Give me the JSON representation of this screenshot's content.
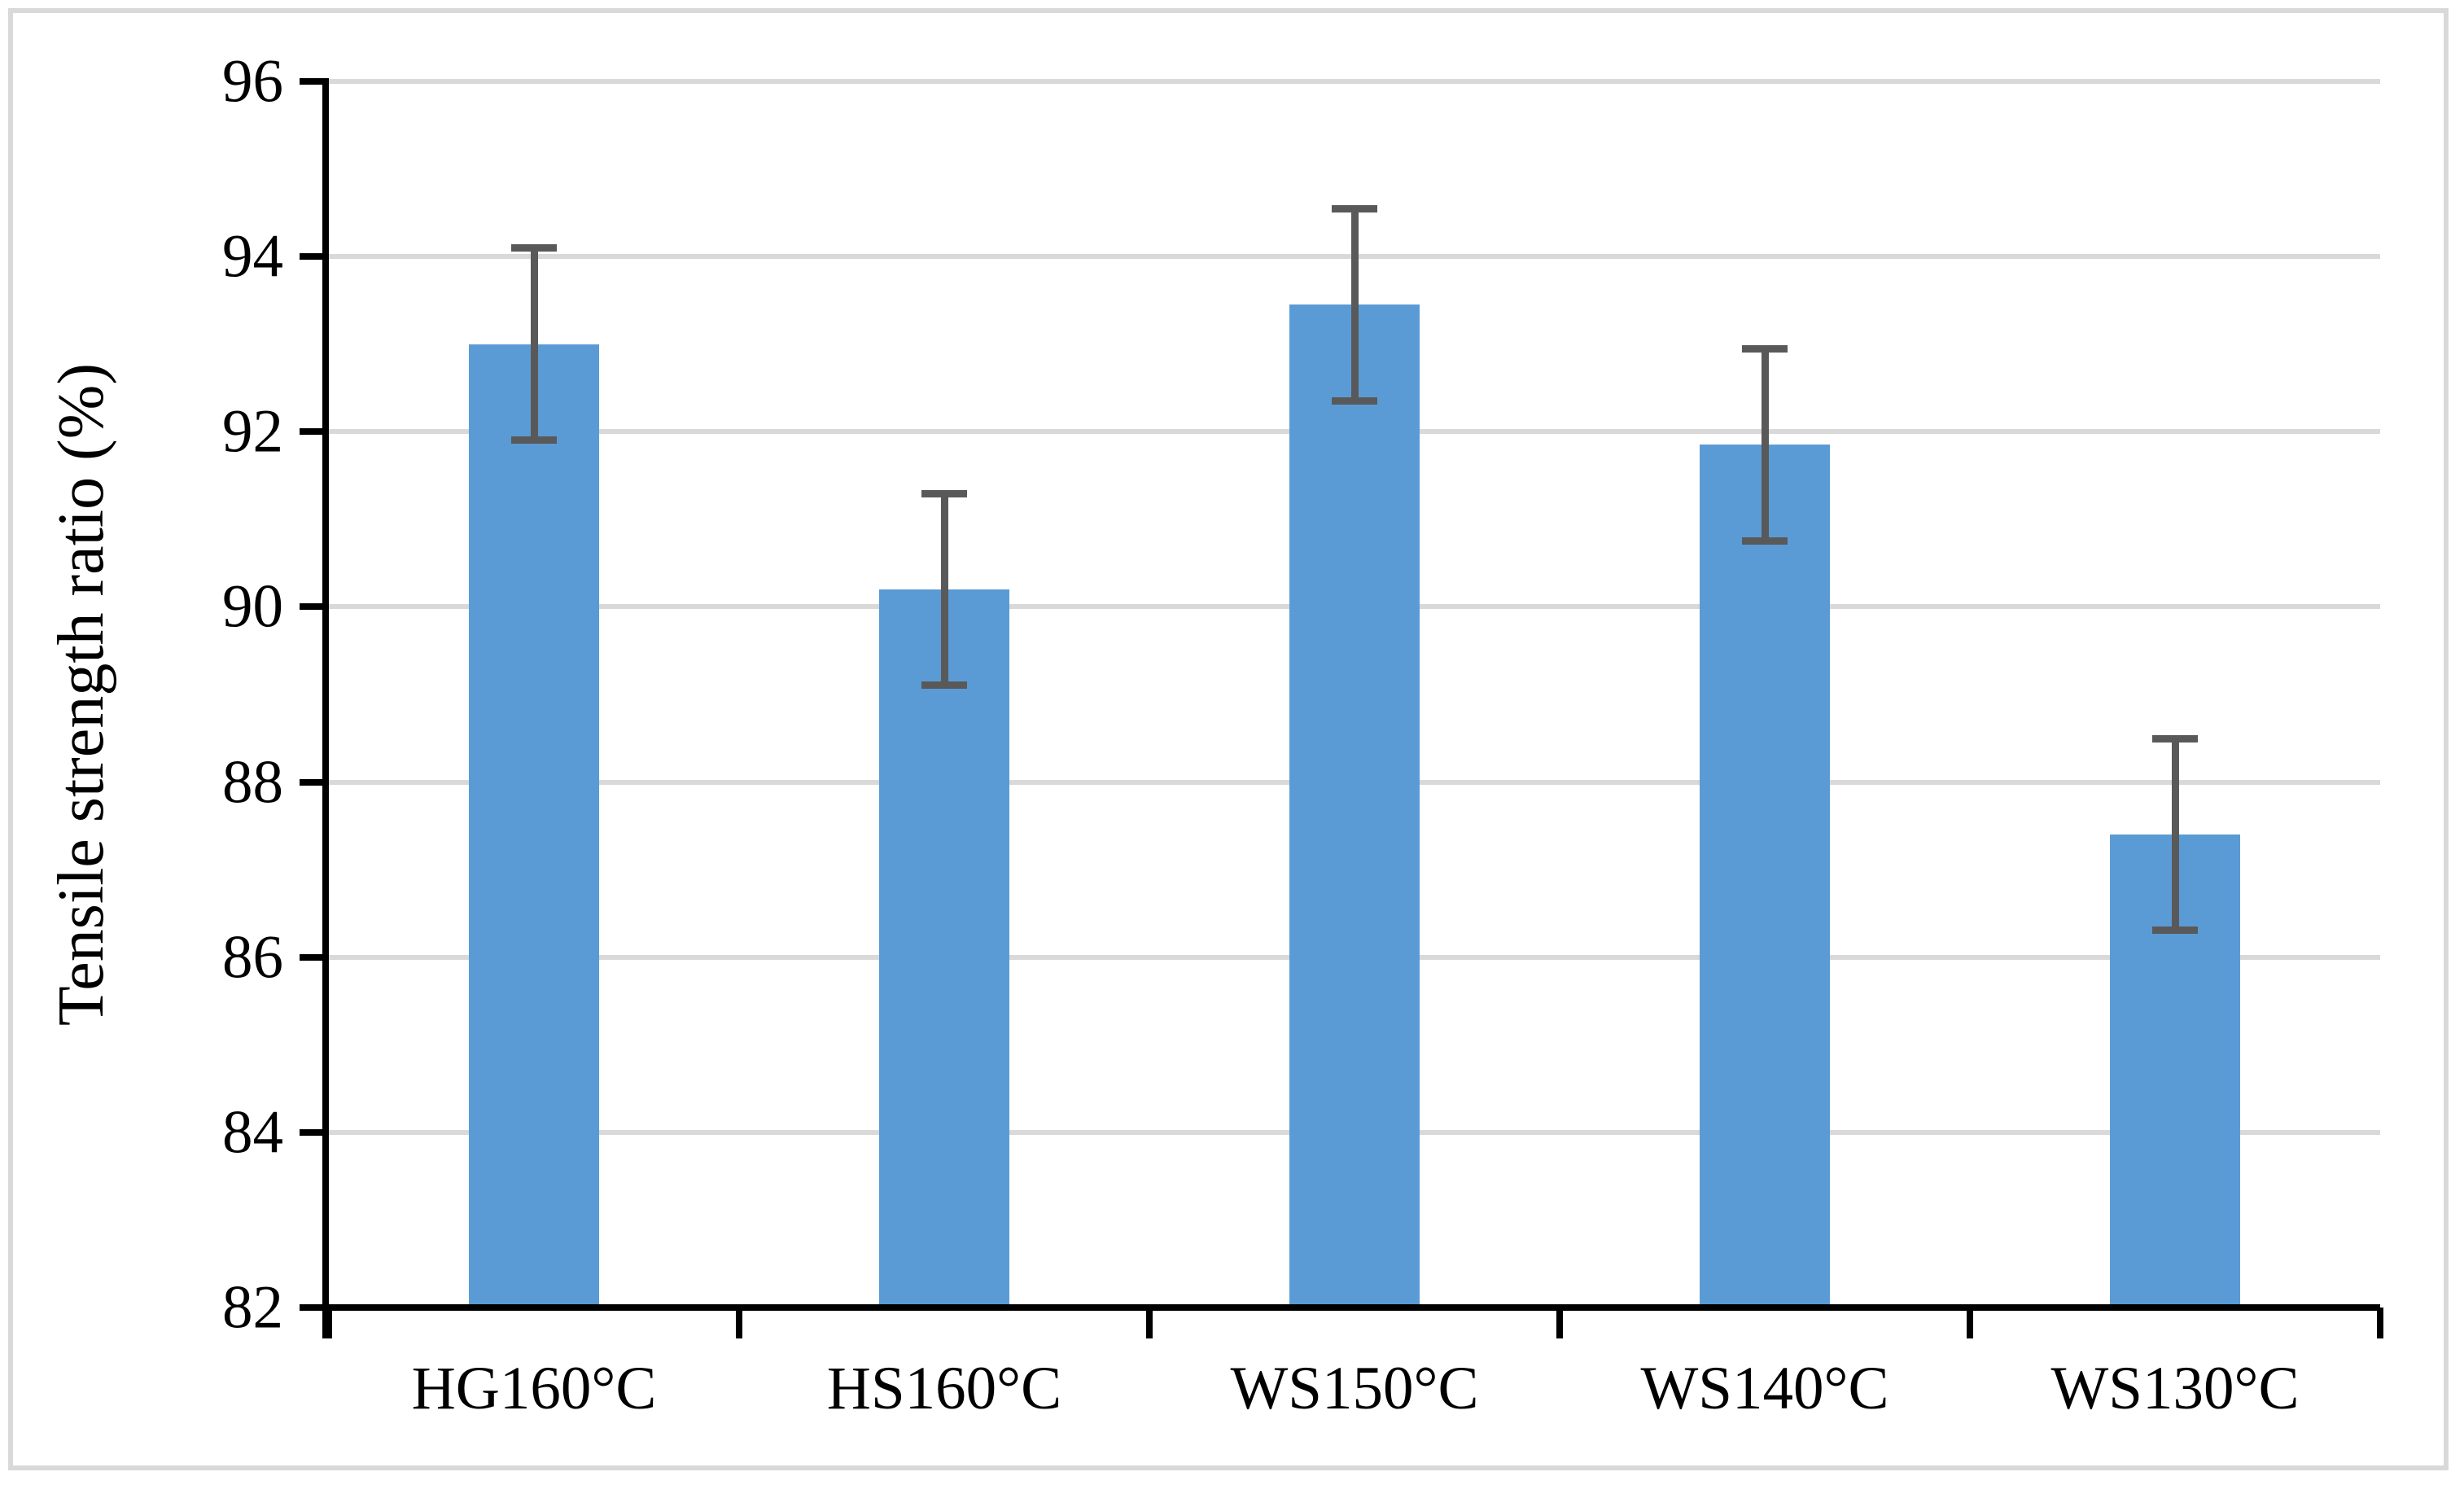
{
  "figure": {
    "background_color": "#ffffff",
    "border_color": "#d9d9d9"
  },
  "chart_data": {
    "type": "bar",
    "title": "",
    "xlabel": "",
    "ylabel": "Tensile strength ratio (%)",
    "categories": [
      "HG160°C",
      "HS160°C",
      "WS150°C",
      "WS140°C",
      "WS130°C"
    ],
    "values": [
      93.0,
      90.2,
      93.45,
      91.85,
      87.4
    ],
    "error_bars": {
      "type": "symmetric",
      "values": [
        1.1,
        1.1,
        1.1,
        1.1,
        1.1
      ],
      "upper_ends": [
        94.1,
        91.3,
        94.55,
        92.95,
        88.5
      ],
      "lower_ends": [
        91.9,
        89.1,
        92.35,
        90.75,
        86.3
      ]
    },
    "ylim": [
      82,
      96
    ],
    "ytick_step": 2,
    "yticks": [
      82,
      84,
      86,
      88,
      90,
      92,
      94,
      96
    ],
    "grid": "horizontal-only",
    "legend": "none",
    "colors": {
      "bar_fill": "#5b9bd5",
      "error_bar": "#595959",
      "gridline": "#d9d9d9",
      "axis": "#000000",
      "text": "#000000"
    }
  }
}
